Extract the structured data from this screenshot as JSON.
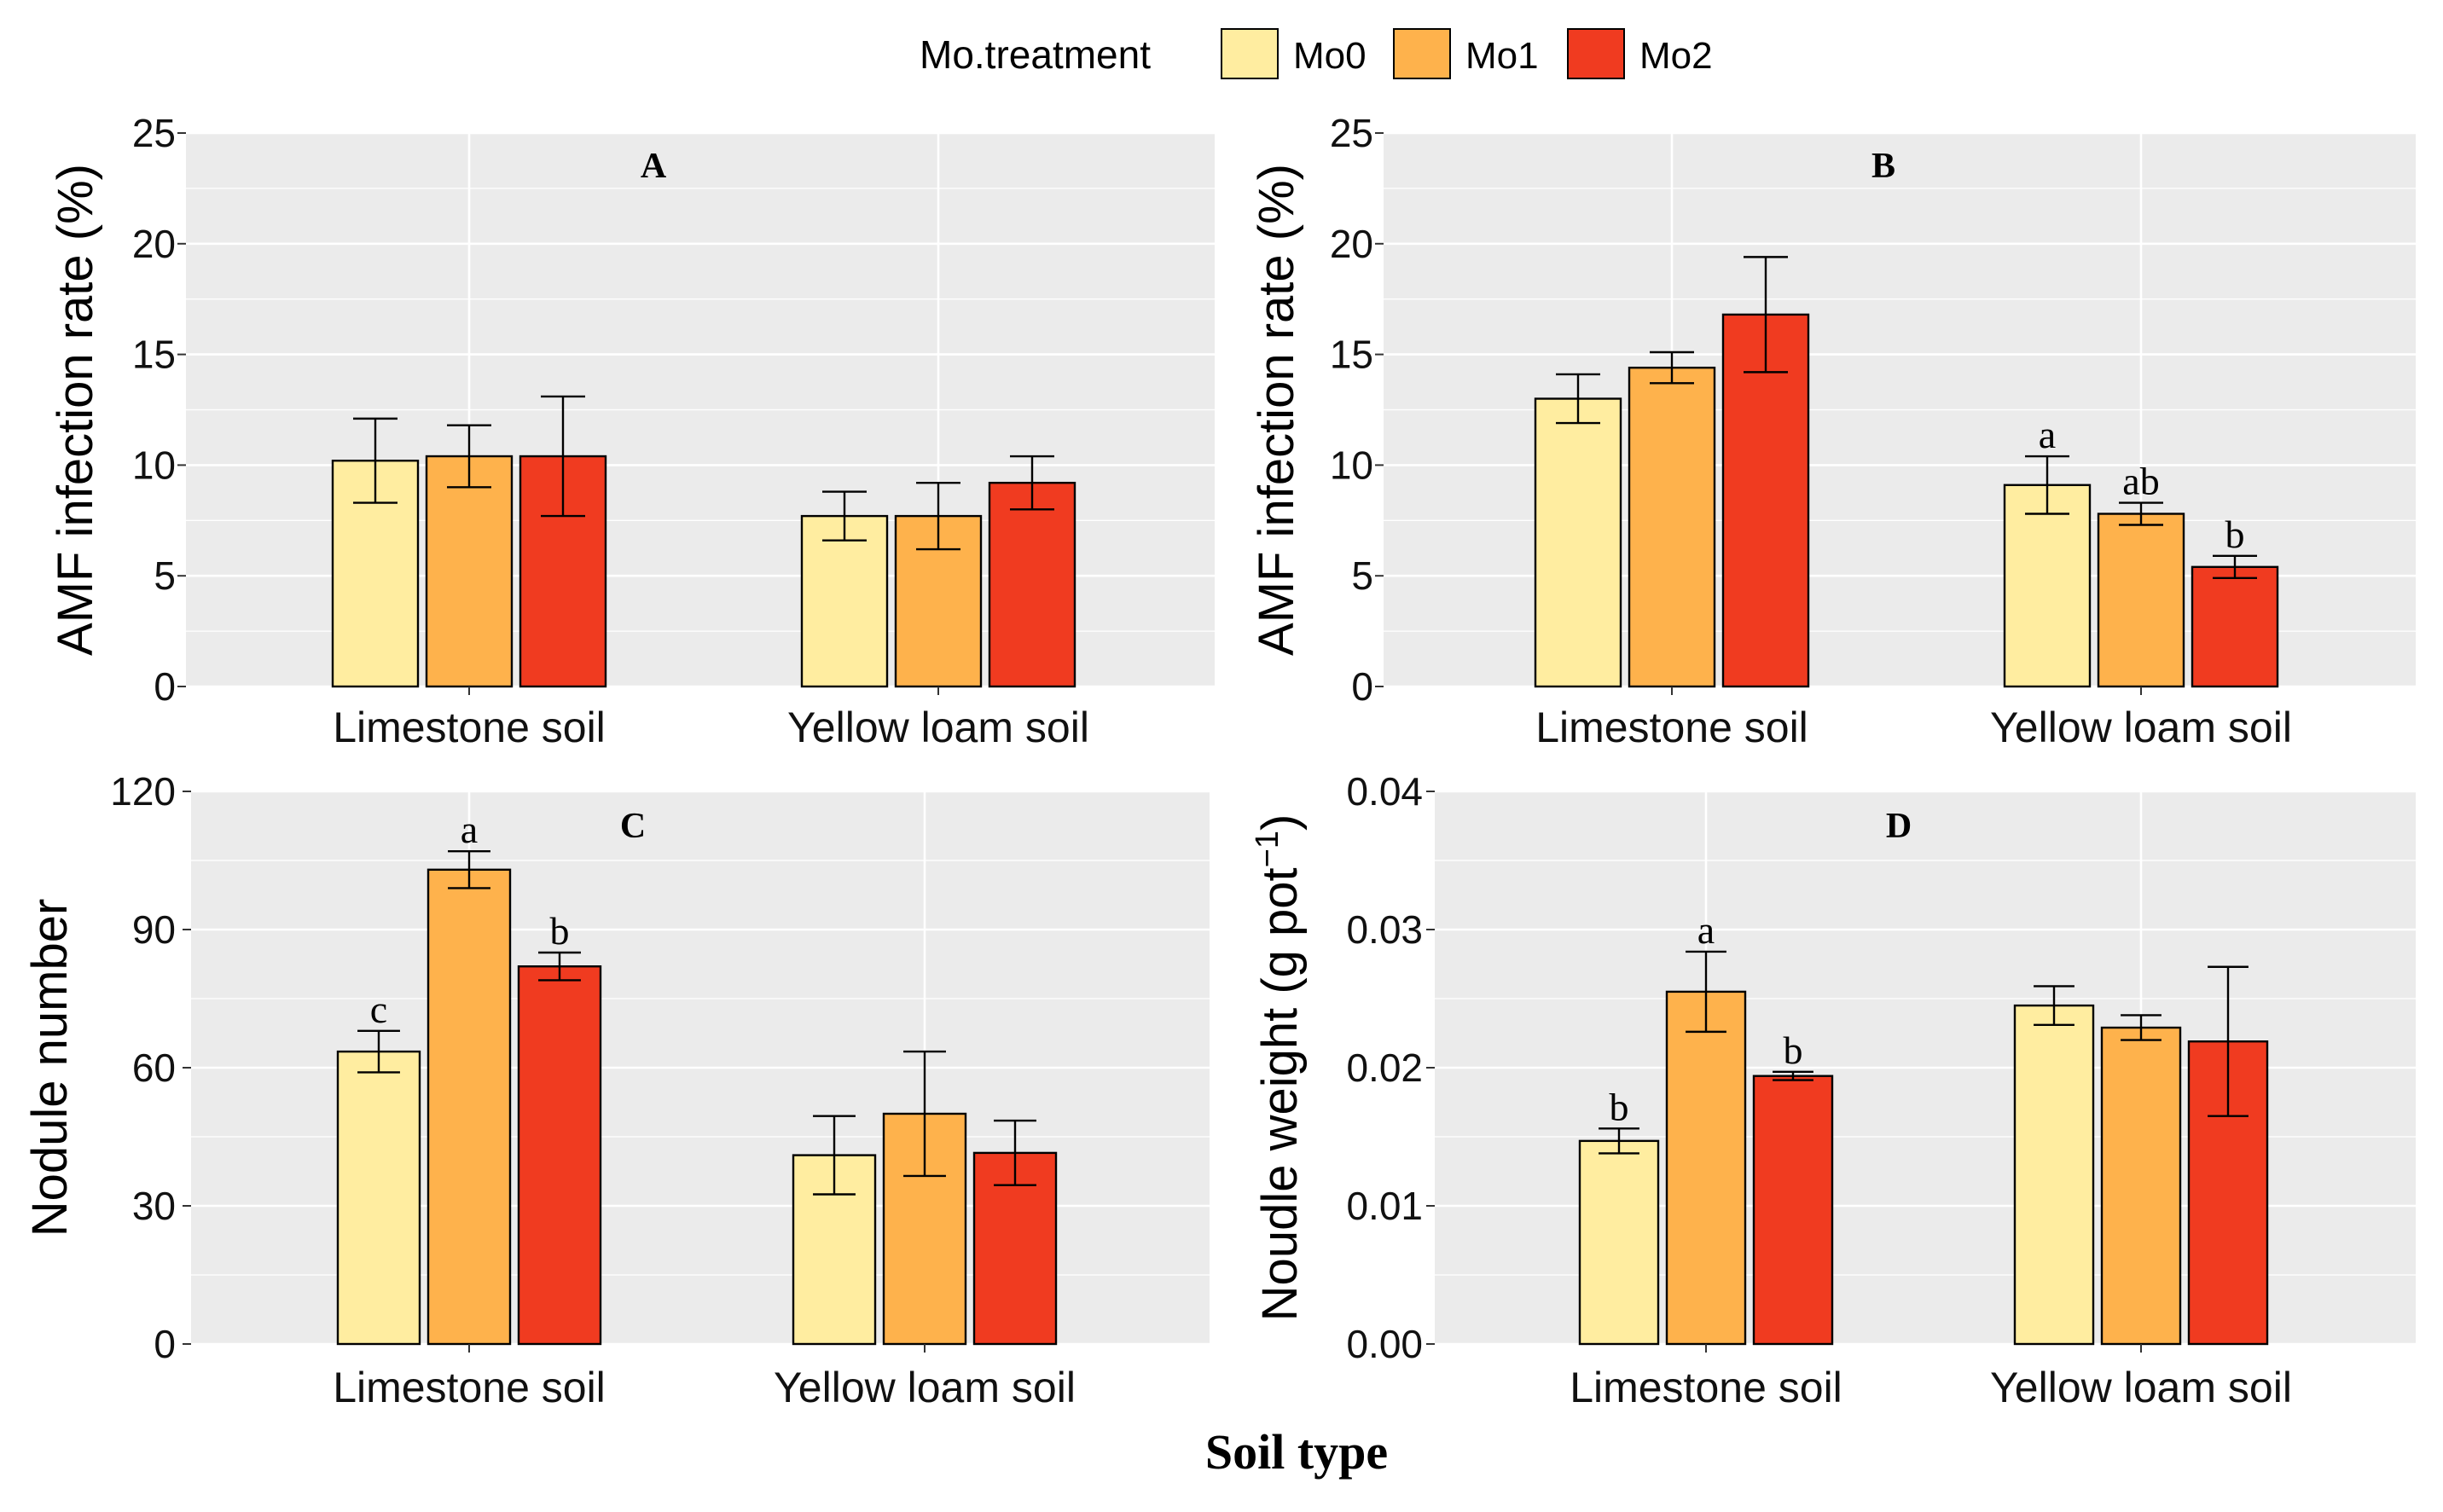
{
  "figure": {
    "xlabel": "Soil type"
  },
  "legend": {
    "title": "Mo.treatment",
    "items": [
      {
        "label": "Mo0",
        "color": "#ffeda0"
      },
      {
        "label": "Mo1",
        "color": "#feb24c"
      },
      {
        "label": "Mo2",
        "color": "#f03b20"
      }
    ]
  },
  "chart_data": [
    {
      "type": "bar",
      "panel": "A",
      "title": "A",
      "ylabel": "AMF infection rate (%)",
      "ylim": [
        0,
        25
      ],
      "yticks": [
        0,
        5,
        10,
        15,
        20,
        25
      ],
      "ytick_labels": [
        "0",
        "5",
        "10",
        "15",
        "20",
        "25"
      ],
      "categories": [
        "Limestone soil",
        "Yellow loam soil"
      ],
      "series": [
        {
          "name": "Mo0",
          "values": [
            10.2,
            7.7
          ],
          "errors": [
            1.9,
            1.1
          ],
          "letters": [
            "",
            ""
          ]
        },
        {
          "name": "Mo1",
          "values": [
            10.4,
            7.7
          ],
          "errors": [
            1.4,
            1.5
          ],
          "letters": [
            "",
            ""
          ]
        },
        {
          "name": "Mo2",
          "values": [
            10.4,
            9.2
          ],
          "errors": [
            2.7,
            1.2
          ],
          "letters": [
            "",
            ""
          ]
        }
      ]
    },
    {
      "type": "bar",
      "panel": "B",
      "title": "B",
      "ylabel": "AMF infection rate (%)",
      "ylim": [
        0,
        25
      ],
      "yticks": [
        0,
        5,
        10,
        15,
        20,
        25
      ],
      "ytick_labels": [
        "0",
        "5",
        "10",
        "15",
        "20",
        "25"
      ],
      "categories": [
        "Limestone soil",
        "Yellow loam soil"
      ],
      "series": [
        {
          "name": "Mo0",
          "values": [
            13.0,
            9.1
          ],
          "errors": [
            1.1,
            1.3
          ],
          "letters": [
            "",
            "a"
          ]
        },
        {
          "name": "Mo1",
          "values": [
            14.4,
            7.8
          ],
          "errors": [
            0.7,
            0.5
          ],
          "letters": [
            "",
            "ab"
          ]
        },
        {
          "name": "Mo2",
          "values": [
            16.8,
            5.4
          ],
          "errors": [
            2.6,
            0.5
          ],
          "letters": [
            "",
            "b"
          ]
        }
      ]
    },
    {
      "type": "bar",
      "panel": "C",
      "title": "C",
      "ylabel": "Nodule number",
      "ylim": [
        0,
        120
      ],
      "yticks": [
        0,
        30,
        60,
        90,
        120
      ],
      "ytick_labels": [
        "0",
        "30",
        "60",
        "90",
        "120"
      ],
      "categories": [
        "Limestone soil",
        "Yellow loam soil"
      ],
      "series": [
        {
          "name": "Mo0",
          "values": [
            63.5,
            41
          ],
          "errors": [
            4.5,
            8.5
          ],
          "letters": [
            "c",
            ""
          ]
        },
        {
          "name": "Mo1",
          "values": [
            103,
            50
          ],
          "errors": [
            4,
            13.5
          ],
          "letters": [
            "a",
            ""
          ]
        },
        {
          "name": "Mo2",
          "values": [
            82,
            41.5
          ],
          "errors": [
            3,
            7
          ],
          "letters": [
            "b",
            ""
          ]
        }
      ]
    },
    {
      "type": "bar",
      "panel": "D",
      "title": "D",
      "ylabel": "Noudle weight (g pot",
      "ylabel_sup": "−1",
      "ylabel_end": ")",
      "ylim": [
        0,
        0.04
      ],
      "yticks": [
        0,
        0.01,
        0.02,
        0.03,
        0.04
      ],
      "ytick_labels": [
        "0.00",
        "0.01",
        "0.02",
        "0.03",
        "0.04"
      ],
      "categories": [
        "Limestone soil",
        "Yellow loam soil"
      ],
      "series": [
        {
          "name": "Mo0",
          "values": [
            0.0147,
            0.0245
          ],
          "errors": [
            0.0009,
            0.0014
          ],
          "letters": [
            "b",
            ""
          ]
        },
        {
          "name": "Mo1",
          "values": [
            0.0255,
            0.0229
          ],
          "errors": [
            0.0029,
            0.0009
          ],
          "letters": [
            "a",
            ""
          ]
        },
        {
          "name": "Mo2",
          "values": [
            0.0194,
            0.0219
          ],
          "errors": [
            0.0003,
            0.0054
          ],
          "letters": [
            "b",
            ""
          ]
        }
      ]
    }
  ]
}
